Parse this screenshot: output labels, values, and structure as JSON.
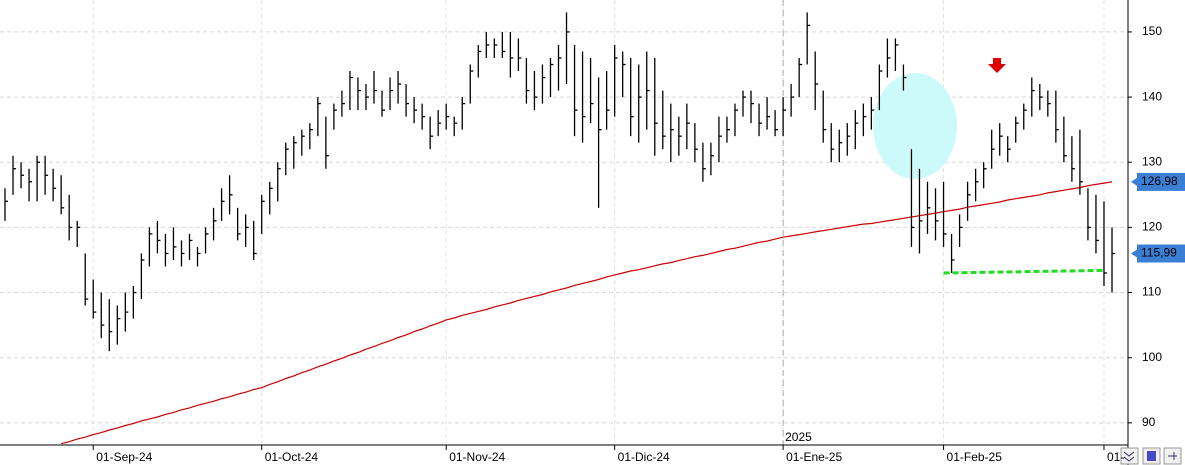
{
  "chart_data": {
    "type": "ohlc",
    "categories": [
      null,
      null,
      null,
      null,
      null,
      null,
      null,
      null,
      null,
      null,
      null,
      "01-Sep-24",
      null,
      null,
      null,
      null,
      null,
      null,
      null,
      null,
      null,
      null,
      null,
      null,
      null,
      null,
      null,
      null,
      null,
      null,
      null,
      null,
      "01-Oct-24",
      null,
      null,
      null,
      null,
      null,
      null,
      null,
      null,
      null,
      null,
      null,
      null,
      null,
      null,
      null,
      null,
      null,
      null,
      null,
      null,
      null,
      null,
      "01-Nov-24",
      null,
      null,
      null,
      null,
      null,
      null,
      null,
      null,
      null,
      null,
      null,
      null,
      null,
      null,
      null,
      null,
      null,
      null,
      null,
      null,
      "01-Dic-24",
      null,
      null,
      null,
      null,
      null,
      null,
      null,
      null,
      null,
      null,
      null,
      null,
      null,
      null,
      null,
      null,
      null,
      null,
      null,
      null,
      "01-Ene-25",
      null,
      null,
      null,
      null,
      null,
      null,
      null,
      null,
      null,
      null,
      null,
      null,
      null,
      null,
      null,
      null,
      null,
      null,
      null,
      "01-Feb-25",
      null,
      null,
      null,
      null,
      null,
      null,
      null,
      null,
      null,
      null,
      null,
      null,
      null,
      null,
      null,
      null,
      null,
      null,
      null,
      "01-",
      null
    ],
    "ohlc": {
      "color": "#000000",
      "high": [
        126,
        131,
        130,
        129,
        131,
        131,
        129,
        128,
        125,
        121,
        116,
        112,
        110,
        109,
        108,
        110,
        111,
        116,
        120,
        121,
        119,
        120,
        118,
        119,
        117,
        120,
        123,
        126,
        128,
        123,
        122,
        121,
        125,
        127,
        130,
        133,
        134,
        135,
        136,
        140,
        137,
        139,
        141,
        144,
        143,
        142,
        144,
        141,
        143,
        144,
        142,
        140,
        139,
        137,
        138,
        139,
        137,
        140,
        145,
        148,
        150,
        149,
        150,
        150,
        149,
        146,
        144,
        145,
        146,
        148,
        153,
        148,
        147,
        146,
        143,
        144,
        148,
        147,
        146,
        145,
        147,
        146,
        141,
        139,
        137,
        139,
        136,
        133,
        133,
        137,
        137,
        139,
        141,
        141,
        139,
        140,
        138,
        140,
        142,
        146,
        153,
        147,
        141,
        136,
        135,
        136,
        138,
        139,
        140,
        145,
        149,
        149,
        145,
        132,
        129,
        127,
        126,
        127,
        119,
        122,
        127,
        129,
        130,
        135,
        136,
        134,
        137,
        139,
        143,
        142,
        141,
        141,
        137,
        134,
        135,
        126,
        125,
        124,
        120
      ],
      "low": [
        121,
        125,
        126,
        124,
        124,
        125,
        124,
        122,
        118,
        117,
        108,
        106,
        103,
        101,
        102,
        104,
        106,
        109,
        114,
        116,
        114,
        115,
        114,
        115,
        114,
        116,
        118,
        121,
        122,
        118,
        117,
        115,
        119,
        122,
        124,
        128,
        129,
        131,
        132,
        134,
        129,
        135,
        137,
        138,
        138,
        138,
        139,
        137,
        138,
        139,
        137,
        136,
        135,
        132,
        134,
        135,
        134,
        135,
        139,
        143,
        146,
        146,
        146,
        143,
        144,
        139,
        138,
        139,
        140,
        141,
        142,
        134,
        133,
        136,
        123,
        135,
        137,
        140,
        134,
        133,
        135,
        131,
        132,
        130,
        131,
        132,
        130,
        127,
        128,
        130,
        133,
        134,
        137,
        136,
        134,
        135,
        134,
        134,
        137,
        140,
        145,
        138,
        133,
        130,
        130,
        131,
        132,
        134,
        135,
        138,
        143,
        144,
        141,
        117,
        116,
        119,
        118,
        117,
        113,
        117,
        121,
        124,
        126,
        129,
        131,
        130,
        133,
        135,
        137,
        138,
        137,
        133,
        130,
        127,
        125,
        118,
        116,
        111,
        110
      ],
      "close": [
        124,
        129,
        128,
        127,
        130,
        128,
        126,
        123,
        120,
        120,
        109,
        107,
        105,
        104,
        106,
        107,
        110,
        115,
        119,
        118,
        116,
        117,
        116,
        118,
        116,
        119,
        121,
        124,
        125,
        119,
        120,
        116,
        124,
        126,
        129,
        132,
        133,
        134,
        135,
        139,
        131,
        138,
        139,
        143,
        141,
        140,
        141,
        138,
        141,
        142,
        139,
        138,
        137,
        134,
        136,
        137,
        136,
        139,
        144,
        147,
        148,
        148,
        147,
        146,
        146,
        141,
        140,
        143,
        145,
        146,
        150,
        138,
        137,
        139,
        135,
        138,
        146,
        145,
        137,
        140,
        141,
        136,
        134,
        135,
        134,
        136,
        132,
        129,
        131,
        134,
        135,
        138,
        140,
        139,
        136,
        137,
        135,
        138,
        140,
        145,
        151,
        142,
        135,
        132,
        133,
        134,
        136,
        137,
        138,
        144,
        146,
        148,
        143,
        120,
        121,
        123,
        121,
        119,
        115,
        120,
        125,
        127,
        129,
        132,
        134,
        132,
        136,
        138,
        141,
        140,
        139,
        135,
        131,
        129,
        127,
        120,
        118,
        113,
        115.99
      ]
    },
    "ma": {
      "color": "#cc0000",
      "values": [
        null,
        null,
        null,
        null,
        null,
        null,
        null,
        86.8,
        87.1,
        87.5,
        87.8,
        88.2,
        88.5,
        88.9,
        89.2,
        89.6,
        89.9,
        90.3,
        90.6,
        90.9,
        91.3,
        91.6,
        92.0,
        92.3,
        92.7,
        93.0,
        93.3,
        93.7,
        94.0,
        94.4,
        94.7,
        95.1,
        95.4,
        95.9,
        96.3,
        96.8,
        97.2,
        97.7,
        98.1,
        98.6,
        99.0,
        99.5,
        99.9,
        100.4,
        100.8,
        101.3,
        101.7,
        102.2,
        102.6,
        103.1,
        103.5,
        104.0,
        104.4,
        104.9,
        105.3,
        105.8,
        106.1,
        106.5,
        106.8,
        107.1,
        107.4,
        107.8,
        108.1,
        108.4,
        108.8,
        109.1,
        109.4,
        109.7,
        110.1,
        110.4,
        110.7,
        111.1,
        111.4,
        111.7,
        112.0,
        112.4,
        112.7,
        113.0,
        113.3,
        113.5,
        113.8,
        114.1,
        114.4,
        114.6,
        114.9,
        115.2,
        115.5,
        115.7,
        116.0,
        116.3,
        116.6,
        116.8,
        117.1,
        117.4,
        117.7,
        117.9,
        118.2,
        118.5,
        118.7,
        118.9,
        119.1,
        119.3,
        119.5,
        119.7,
        119.9,
        120.1,
        120.3,
        120.5,
        120.6,
        120.8,
        121.0,
        121.2,
        121.4,
        121.6,
        121.8,
        122.0,
        122.2,
        122.4,
        122.6,
        122.8,
        123.1,
        123.3,
        123.5,
        123.7,
        123.9,
        124.2,
        124.4,
        124.6,
        124.8,
        125.0,
        125.3,
        125.5,
        125.7,
        125.9,
        126.1,
        126.4,
        126.6,
        126.8,
        126.98
      ]
    },
    "support_line": {
      "color": "#22dd22",
      "start": 117,
      "end": 137,
      "values": [
        113.0,
        113.4
      ]
    },
    "year_label": {
      "index": 97,
      "label": "2025"
    },
    "price_labels": [
      {
        "value": 126.98,
        "label": "126,98"
      },
      {
        "value": 115.99,
        "label": "115,99"
      }
    ],
    "price_label_color": "#3b7fd4",
    "ylim": [
      86.6,
      154.9
    ],
    "yticks": [
      90,
      100,
      110,
      120,
      130,
      140,
      150
    ],
    "grid": true
  }
}
